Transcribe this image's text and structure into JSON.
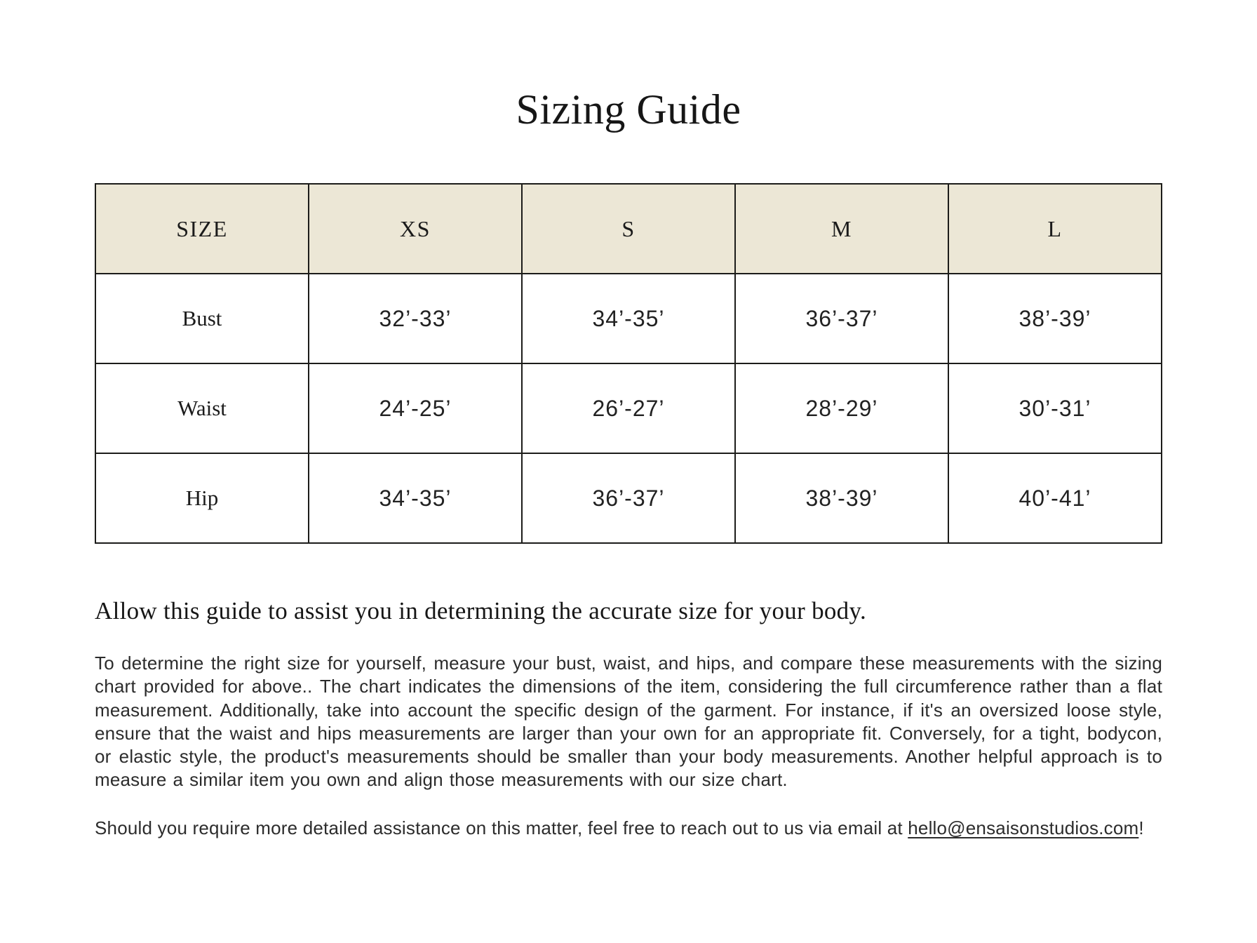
{
  "page": {
    "title": "Sizing Guide"
  },
  "table": {
    "headers": [
      "SIZE",
      "XS",
      "S",
      "M",
      "L"
    ],
    "rows": [
      {
        "label": "Bust",
        "values": [
          "32’-33’",
          "34’-35’",
          "36’-37’",
          "38’-39’"
        ]
      },
      {
        "label": "Waist",
        "values": [
          "24’-25’",
          "26’-27’",
          "28’-29’",
          "30’-31’"
        ]
      },
      {
        "label": "Hip",
        "values": [
          "34’-35’",
          "36’-37’",
          "38’-39’",
          "40’-41’"
        ]
      }
    ],
    "header_bg_color": "#ece7d6",
    "border_color": "#1c1c1a"
  },
  "content": {
    "subtitle": "Allow this guide to assist you in determining the accurate size for your body.",
    "paragraph": "To determine the right size for yourself, measure your bust, waist, and hips, and compare these measurements with the sizing chart provided for above.. The chart indicates the dimensions of the item, considering the full circumference rather than a flat measurement. Additionally, take into account the specific design of the garment. For instance, if it's an oversized loose style, ensure that the waist and hips measurements are larger than your own for an appropriate fit. Conversely, for a tight, bodycon, or elastic style, the product's measurements should be smaller than your body measurements. Another helpful approach is to measure a similar item you own and align those measurements with our size chart.",
    "contact_prefix": "Should you require more detailed assistance on this matter, feel free to reach out to us via email at ",
    "email": "hello@ensaisonstudios.com",
    "contact_suffix": "!"
  }
}
